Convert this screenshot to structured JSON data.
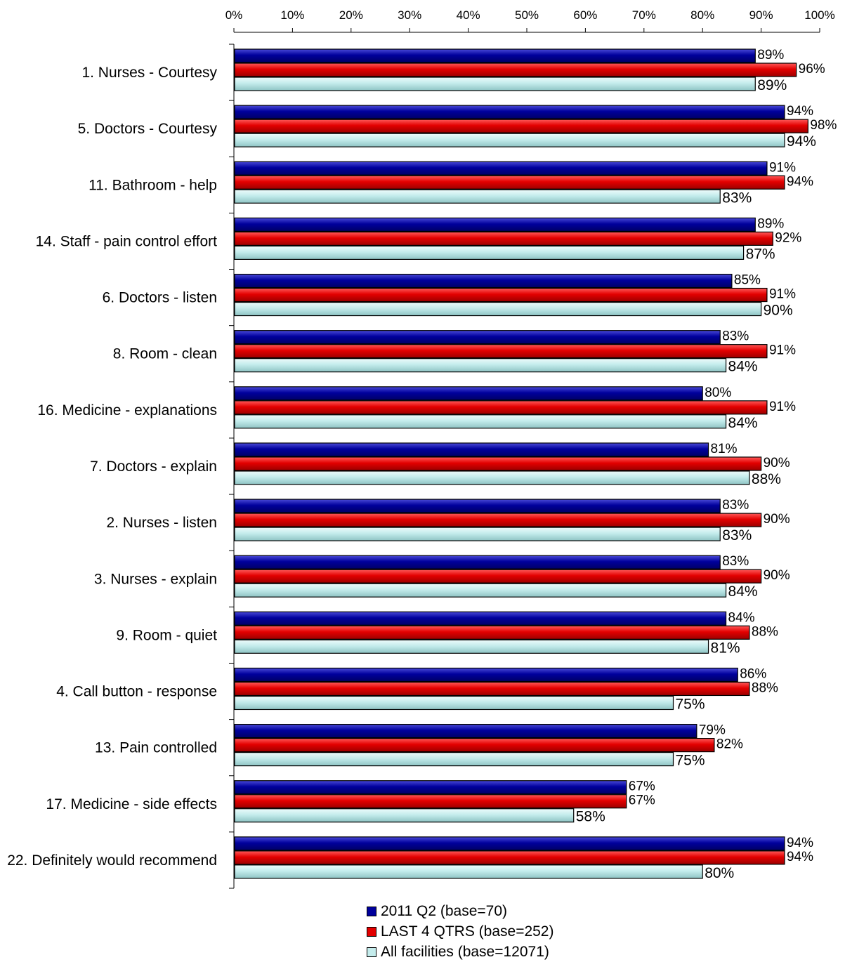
{
  "chart_data": {
    "type": "bar",
    "orientation": "horizontal",
    "x_ticks": [
      "0%",
      "10%",
      "20%",
      "30%",
      "40%",
      "50%",
      "60%",
      "70%",
      "80%",
      "90%",
      "100%"
    ],
    "xlim": [
      0,
      100
    ],
    "categories": [
      "1. Nurses - Courtesy",
      "5. Doctors - Courtesy",
      "11. Bathroom  - help",
      "14. Staff - pain control effort",
      "6. Doctors - listen",
      "8. Room - clean",
      "16. Medicine - explanations",
      "7. Doctors - explain",
      "2. Nurses - listen",
      "3. Nurses - explain",
      "9. Room - quiet",
      "4. Call button - response",
      "13. Pain controlled",
      "17. Medicine - side effects",
      "22. Definitely would recommend"
    ],
    "series": [
      {
        "name": "2011 Q2 (base=70)",
        "color": "#00009c",
        "values": [
          89,
          94,
          91,
          89,
          85,
          83,
          80,
          81,
          83,
          83,
          84,
          86,
          79,
          67,
          94
        ],
        "labels": [
          "89%",
          "94%",
          "91%",
          "89%",
          "85%",
          "83%",
          "80%",
          "81%",
          "83%",
          "83%",
          "84%",
          "86%",
          "79%",
          "67%",
          "94%"
        ]
      },
      {
        "name": "LAST 4 QTRS (base=252)",
        "color": "#e30000",
        "values": [
          96,
          98,
          94,
          92,
          91,
          91,
          91,
          90,
          90,
          90,
          88,
          88,
          82,
          67,
          94
        ],
        "labels": [
          "96%",
          "98%",
          "94%",
          "92%",
          "91%",
          "91%",
          "91%",
          "90%",
          "90%",
          "90%",
          "88%",
          "88%",
          "82%",
          "67%",
          "94%"
        ]
      },
      {
        "name": "All facilities (base=12071)",
        "color": "#c4ecec",
        "values": [
          89,
          94,
          83,
          87,
          90,
          84,
          84,
          88,
          83,
          84,
          81,
          75,
          75,
          58,
          80
        ],
        "labels": [
          "89%",
          "94%",
          "83%",
          "87%",
          "90%",
          "84%",
          "84%",
          "88%",
          "83%",
          "84%",
          "81%",
          "75%",
          "75%",
          "58%",
          "80%"
        ]
      }
    ],
    "legend_position": "bottom",
    "grid": false
  }
}
